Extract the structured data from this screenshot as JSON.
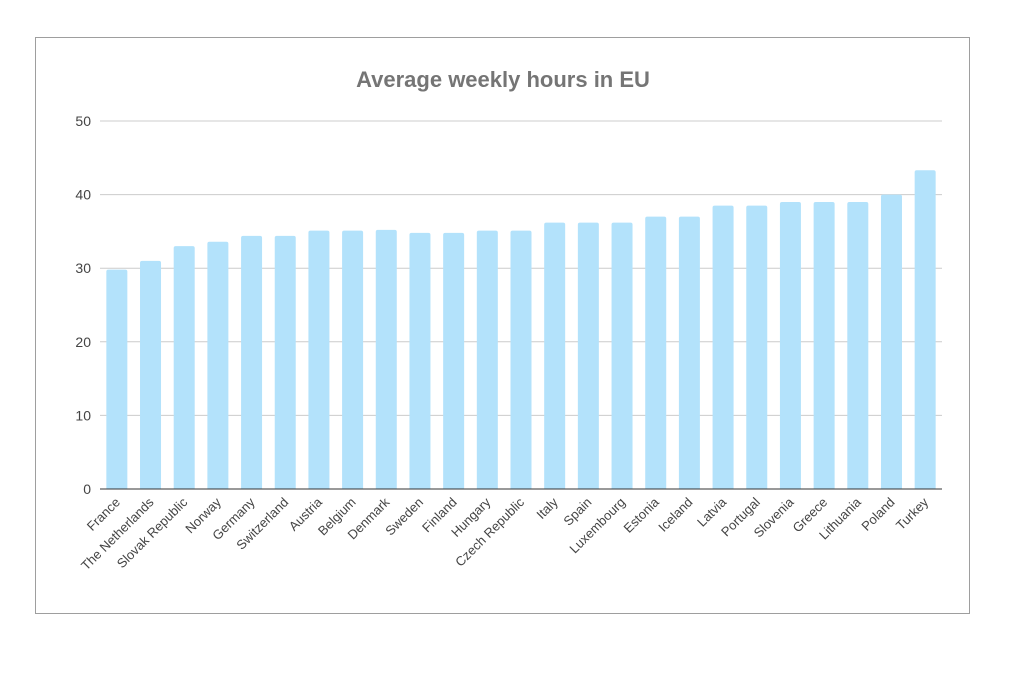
{
  "chart_data": {
    "type": "bar",
    "title": "Average weekly hours in EU",
    "xlabel": "",
    "ylabel": "",
    "ylim": [
      0,
      50
    ],
    "yticks": [
      0,
      10,
      20,
      30,
      40,
      50
    ],
    "grid": true,
    "legend": "none",
    "bar_color": "#b3e2fb",
    "categories": [
      "France",
      "The Netherlands",
      "Slovak Republic",
      "Norway",
      "Germany",
      "Switzerland",
      "Austria",
      "Belgium",
      "Denmark",
      "Sweden",
      "Finland",
      "Hungary",
      "Czech Republic",
      "Italy",
      "Spain",
      "Luxembourg",
      "Estonia",
      "Iceland",
      "Latvia",
      "Portugal",
      "Slovenia",
      "Greece",
      "Lithuania",
      "Poland",
      "Turkey"
    ],
    "values": [
      29.8,
      31.0,
      33.0,
      33.6,
      34.4,
      34.4,
      35.1,
      35.1,
      35.2,
      34.8,
      34.8,
      35.1,
      35.1,
      36.2,
      36.2,
      36.2,
      37.0,
      37.0,
      38.5,
      38.5,
      39.0,
      39.0,
      39.0,
      40.0,
      43.3
    ]
  }
}
